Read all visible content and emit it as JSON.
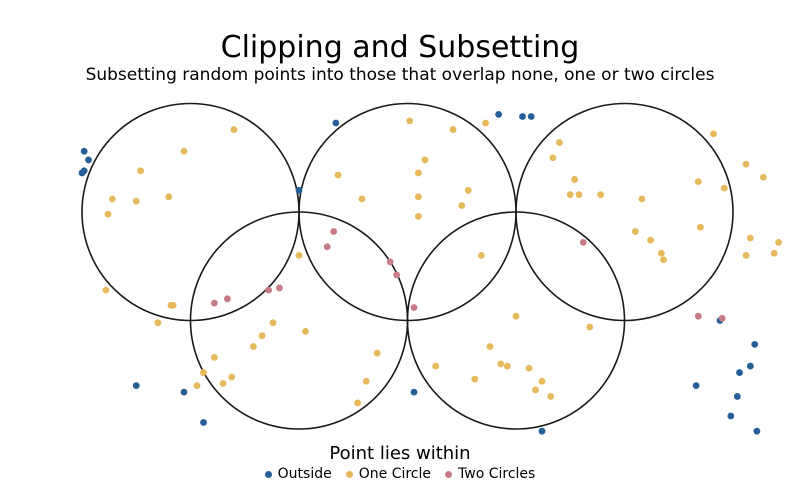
{
  "chart_data": {
    "type": "scatter",
    "title": "Clipping and Subsetting",
    "subtitle": "Subsetting random points into those that overlap none, one or two circles",
    "xlabel": "",
    "ylabel": "",
    "xlim": [
      -0.1,
      3.6
    ],
    "ylim": [
      -0.1,
      1.5
    ],
    "grid": false,
    "legend": {
      "title": "Point lies within",
      "placement": "bottom"
    },
    "circles": [
      {
        "x": 0.5,
        "y": 1.0,
        "r": 0.5
      },
      {
        "x": 1.5,
        "y": 1.0,
        "r": 0.5
      },
      {
        "x": 2.5,
        "y": 1.0,
        "r": 0.5
      },
      {
        "x": 1.0,
        "y": 0.5,
        "r": 0.5
      },
      {
        "x": 2.0,
        "y": 0.5,
        "r": 0.5
      }
    ],
    "series": [
      {
        "name": "Outside",
        "color": "#245f98",
        "points": [
          [
            0.01,
            1.28
          ],
          [
            0.03,
            1.24
          ],
          [
            0.01,
            1.19
          ],
          [
            0.0,
            1.18
          ],
          [
            1.0,
            1.1
          ],
          [
            1.17,
            1.41
          ],
          [
            1.92,
            1.45
          ],
          [
            2.03,
            1.44
          ],
          [
            2.07,
            1.44
          ],
          [
            0.25,
            0.2
          ],
          [
            0.47,
            0.17
          ],
          [
            0.56,
            0.03
          ],
          [
            1.53,
            0.17
          ],
          [
            2.12,
            -0.01
          ],
          [
            2.94,
            0.5
          ],
          [
            2.83,
            0.2
          ],
          [
            3.08,
            0.29
          ],
          [
            3.03,
            0.26
          ],
          [
            3.02,
            0.15
          ],
          [
            2.99,
            0.06
          ],
          [
            3.1,
            0.39
          ],
          [
            3.11,
            -0.01
          ]
        ]
      },
      {
        "name": "One Circle",
        "color": "#e6b95c",
        "points": [
          [
            0.14,
            1.06
          ],
          [
            0.12,
            0.99
          ],
          [
            0.25,
            1.05
          ],
          [
            0.27,
            1.19
          ],
          [
            0.4,
            1.07
          ],
          [
            0.47,
            1.28
          ],
          [
            0.7,
            1.38
          ],
          [
            0.11,
            0.64
          ],
          [
            0.41,
            0.57
          ],
          [
            0.42,
            0.57
          ],
          [
            0.35,
            0.49
          ],
          [
            1.18,
            1.17
          ],
          [
            1.29,
            1.06
          ],
          [
            1.55,
            1.18
          ],
          [
            1.58,
            1.24
          ],
          [
            1.71,
            1.38
          ],
          [
            1.75,
            1.03
          ],
          [
            1.78,
            1.1
          ],
          [
            1.55,
            1.07
          ],
          [
            1.51,
            1.42
          ],
          [
            1.55,
            0.98
          ],
          [
            1.86,
            1.41
          ],
          [
            2.17,
            1.25
          ],
          [
            2.2,
            1.32
          ],
          [
            2.25,
            1.08
          ],
          [
            2.27,
            1.15
          ],
          [
            2.29,
            1.08
          ],
          [
            2.39,
            1.08
          ],
          [
            2.58,
            1.06
          ],
          [
            2.55,
            0.91
          ],
          [
            2.62,
            0.87
          ],
          [
            2.67,
            0.81
          ],
          [
            2.68,
            0.78
          ],
          [
            2.84,
            1.14
          ],
          [
            2.91,
            1.36
          ],
          [
            2.96,
            1.11
          ],
          [
            2.85,
            0.93
          ],
          [
            3.06,
            1.22
          ],
          [
            3.14,
            1.16
          ],
          [
            3.19,
            0.81
          ],
          [
            3.21,
            0.86
          ],
          [
            3.08,
            0.88
          ],
          [
            3.06,
            0.8
          ],
          [
            1.84,
            0.8
          ],
          [
            1.0,
            0.8
          ],
          [
            1.03,
            0.45
          ],
          [
            0.83,
            0.43
          ],
          [
            0.79,
            0.38
          ],
          [
            0.88,
            0.49
          ],
          [
            0.69,
            0.24
          ],
          [
            0.61,
            0.33
          ],
          [
            0.53,
            0.2
          ],
          [
            0.56,
            0.26
          ],
          [
            0.65,
            0.21
          ],
          [
            1.36,
            0.35
          ],
          [
            1.31,
            0.22
          ],
          [
            1.27,
            0.12
          ],
          [
            2.0,
            0.52
          ],
          [
            1.63,
            0.29
          ],
          [
            1.81,
            0.23
          ],
          [
            1.93,
            0.3
          ],
          [
            1.96,
            0.29
          ],
          [
            1.88,
            0.38
          ],
          [
            2.09,
            0.18
          ],
          [
            2.12,
            0.22
          ],
          [
            2.06,
            0.28
          ],
          [
            2.16,
            0.15
          ],
          [
            2.34,
            0.47
          ]
        ]
      },
      {
        "name": "Two Circles",
        "color": "#c77b86",
        "points": [
          [
            1.16,
            0.91
          ],
          [
            1.13,
            0.84
          ],
          [
            0.91,
            0.65
          ],
          [
            0.86,
            0.64
          ],
          [
            0.67,
            0.6
          ],
          [
            0.61,
            0.58
          ],
          [
            1.42,
            0.77
          ],
          [
            1.45,
            0.71
          ],
          [
            2.31,
            0.86
          ],
          [
            2.84,
            0.52
          ],
          [
            2.95,
            0.51
          ],
          [
            1.53,
            0.56
          ]
        ]
      }
    ]
  }
}
